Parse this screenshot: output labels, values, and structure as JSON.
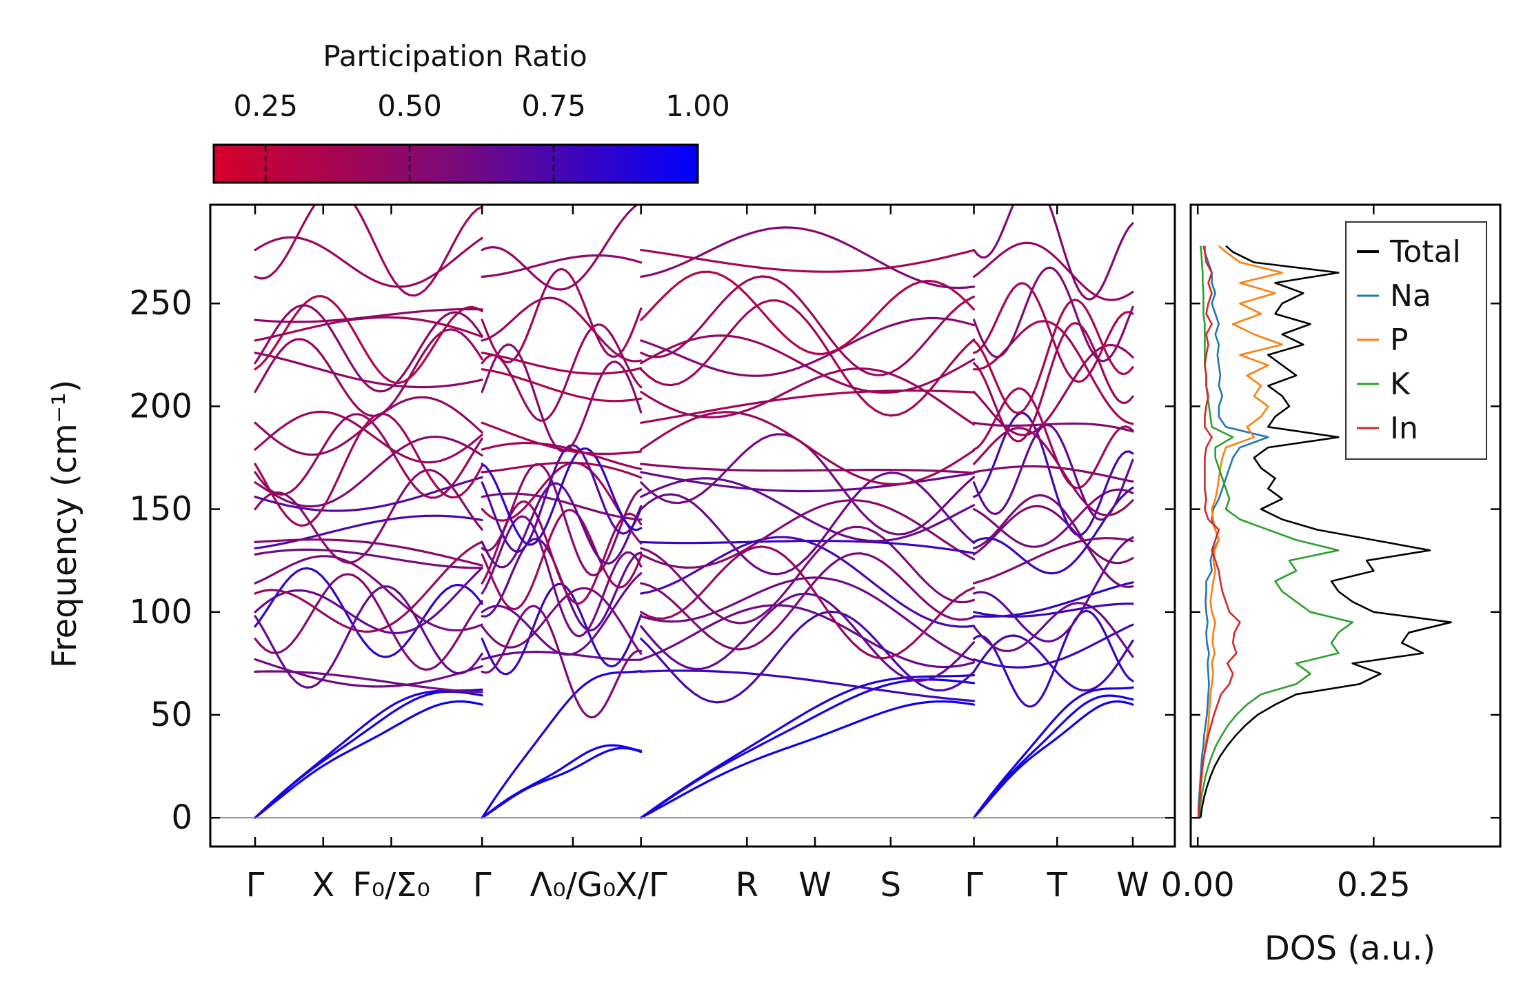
{
  "colorbar": {
    "title": "Participation Ratio",
    "ticks": [
      "0.25",
      "0.50",
      "0.75",
      "1.00"
    ],
    "tick_values": [
      0.25,
      0.5,
      0.75,
      1.0
    ],
    "range": [
      0.16,
      1.0
    ],
    "color_low": "#d4002a",
    "color_mid": "#7a0a7a",
    "color_high": "#0000ff"
  },
  "chart_data": [
    {
      "type": "line",
      "title": "",
      "xlabel": "",
      "ylabel": "Frequency (cm⁻¹)",
      "ylim": [
        -14,
        298
      ],
      "yticks": [
        0,
        50,
        100,
        150,
        200,
        250
      ],
      "path_distance_range": [
        0,
        11.6
      ],
      "high_symmetry_points": [
        {
          "label": "Γ",
          "pos": 0
        },
        {
          "label": "X",
          "pos": 0.9
        },
        {
          "label": "F₀/Σ₀",
          "pos": 1.8
        },
        {
          "label": "Γ",
          "pos": 3.0
        },
        {
          "label": "Λ₀/G₀",
          "pos": 4.2
        },
        {
          "label": "X/Γ",
          "pos": 5.1
        },
        {
          "label": "R",
          "pos": 6.5
        },
        {
          "label": "W",
          "pos": 7.4
        },
        {
          "label": "S",
          "pos": 8.4
        },
        {
          "label": "Γ",
          "pos": 9.5
        },
        {
          "label": "T",
          "pos": 10.6
        },
        {
          "label": "W",
          "pos": 11.6
        }
      ],
      "segments": [
        {
          "x_range": [
            0,
            3.0
          ],
          "acoustic_end_freqs": [
            55,
            62,
            65
          ]
        },
        {
          "x_range": [
            3.0,
            5.1
          ],
          "acoustic_end_freqs": [
            32,
            35,
            74
          ]
        },
        {
          "x_range": [
            5.1,
            9.5
          ],
          "acoustic_end_freqs": [
            55,
            68,
            72
          ]
        },
        {
          "x_range": [
            9.5,
            11.6
          ],
          "acoustic_end_freqs": [
            55,
            60,
            66
          ]
        }
      ],
      "optical_band_gamma_freqs": [
        71,
        77,
        87,
        93,
        98,
        100,
        109,
        114,
        128,
        131,
        134,
        150,
        156,
        163,
        168,
        172,
        179,
        192,
        207,
        218,
        221,
        226,
        232,
        242,
        263,
        276
      ],
      "color_encoding": "Participation Ratio"
    },
    {
      "type": "line",
      "xlabel": "DOS (a.u.)",
      "ylabel": "",
      "xlim": [
        -0.01,
        0.43
      ],
      "xticks": [
        "0.00",
        "0.25"
      ],
      "xtick_values": [
        0.0,
        0.25
      ],
      "ylim": [
        -14,
        298
      ],
      "freq_grid": [
        0,
        5,
        10,
        15,
        20,
        25,
        30,
        35,
        40,
        45,
        50,
        55,
        60,
        65,
        70,
        75,
        80,
        85,
        90,
        95,
        100,
        105,
        110,
        115,
        120,
        125,
        130,
        135,
        140,
        145,
        150,
        155,
        160,
        165,
        170,
        175,
        180,
        185,
        190,
        195,
        200,
        205,
        210,
        215,
        220,
        225,
        230,
        235,
        240,
        245,
        250,
        255,
        260,
        265,
        270,
        275,
        278
      ],
      "series": [
        {
          "name": "Total",
          "color": "#000000",
          "values": [
            0.004,
            0.006,
            0.009,
            0.013,
            0.018,
            0.024,
            0.032,
            0.042,
            0.054,
            0.068,
            0.085,
            0.11,
            0.14,
            0.23,
            0.26,
            0.22,
            0.32,
            0.29,
            0.3,
            0.36,
            0.25,
            0.22,
            0.2,
            0.19,
            0.25,
            0.24,
            0.33,
            0.25,
            0.17,
            0.12,
            0.09,
            0.12,
            0.1,
            0.11,
            0.09,
            0.08,
            0.1,
            0.2,
            0.1,
            0.11,
            0.13,
            0.12,
            0.1,
            0.14,
            0.12,
            0.1,
            0.15,
            0.12,
            0.16,
            0.11,
            0.12,
            0.15,
            0.11,
            0.2,
            0.08,
            0.05,
            0.04
          ]
        },
        {
          "name": "Na",
          "color": "#1f77b4",
          "values": [
            0.001,
            0.001,
            0.002,
            0.003,
            0.004,
            0.005,
            0.006,
            0.008,
            0.009,
            0.011,
            0.013,
            0.014,
            0.015,
            0.016,
            0.015,
            0.014,
            0.016,
            0.013,
            0.012,
            0.014,
            0.012,
            0.011,
            0.012,
            0.012,
            0.02,
            0.018,
            0.022,
            0.03,
            0.025,
            0.02,
            0.022,
            0.03,
            0.035,
            0.04,
            0.045,
            0.05,
            0.06,
            0.1,
            0.04,
            0.03,
            0.03,
            0.035,
            0.03,
            0.032,
            0.03,
            0.028,
            0.03,
            0.025,
            0.03,
            0.025,
            0.02,
            0.025,
            0.02,
            0.02,
            0.015,
            0.01,
            0.008
          ]
        },
        {
          "name": "P",
          "color": "#ff7f0e",
          "values": [
            0.001,
            0.002,
            0.003,
            0.004,
            0.006,
            0.007,
            0.009,
            0.011,
            0.013,
            0.015,
            0.016,
            0.017,
            0.018,
            0.02,
            0.022,
            0.02,
            0.024,
            0.021,
            0.022,
            0.025,
            0.02,
            0.018,
            0.02,
            0.022,
            0.025,
            0.022,
            0.024,
            0.03,
            0.025,
            0.022,
            0.02,
            0.025,
            0.028,
            0.03,
            0.032,
            0.035,
            0.04,
            0.08,
            0.07,
            0.09,
            0.1,
            0.08,
            0.09,
            0.07,
            0.1,
            0.06,
            0.12,
            0.08,
            0.05,
            0.09,
            0.06,
            0.11,
            0.06,
            0.12,
            0.06,
            0.04,
            0.03
          ]
        },
        {
          "name": "K",
          "color": "#2ca02c",
          "values": [
            0.002,
            0.003,
            0.005,
            0.008,
            0.011,
            0.015,
            0.02,
            0.026,
            0.034,
            0.043,
            0.055,
            0.07,
            0.09,
            0.14,
            0.16,
            0.14,
            0.2,
            0.19,
            0.2,
            0.22,
            0.16,
            0.14,
            0.12,
            0.11,
            0.14,
            0.13,
            0.2,
            0.14,
            0.1,
            0.06,
            0.04,
            0.045,
            0.04,
            0.035,
            0.03,
            0.025,
            0.025,
            0.05,
            0.02,
            0.018,
            0.016,
            0.014,
            0.012,
            0.012,
            0.01,
            0.01,
            0.01,
            0.01,
            0.01,
            0.008,
            0.008,
            0.008,
            0.007,
            0.007,
            0.006,
            0.005,
            0.004
          ]
        },
        {
          "name": "In",
          "color": "#d62728",
          "values": [
            0.001,
            0.002,
            0.003,
            0.004,
            0.005,
            0.007,
            0.009,
            0.012,
            0.015,
            0.019,
            0.023,
            0.028,
            0.033,
            0.045,
            0.05,
            0.042,
            0.055,
            0.05,
            0.052,
            0.06,
            0.045,
            0.04,
            0.035,
            0.032,
            0.03,
            0.025,
            0.02,
            0.025,
            0.03,
            0.015,
            0.01,
            0.012,
            0.01,
            0.01,
            0.01,
            0.01,
            0.012,
            0.02,
            0.01,
            0.01,
            0.012,
            0.015,
            0.012,
            0.012,
            0.01,
            0.012,
            0.015,
            0.012,
            0.02,
            0.012,
            0.015,
            0.02,
            0.015,
            0.02,
            0.012,
            0.01,
            0.01
          ]
        }
      ],
      "legend": [
        "Total",
        "Na",
        "P",
        "K",
        "In"
      ],
      "legend_position": "top-right"
    }
  ]
}
